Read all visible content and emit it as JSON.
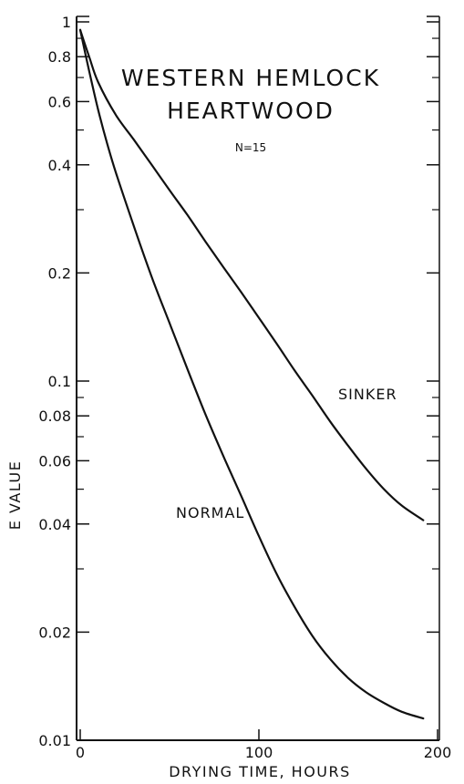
{
  "chart_data": {
    "type": "line",
    "title_lines": [
      "WESTERN HEMLOCK",
      "HEARTWOOD"
    ],
    "subtitle": "N=15",
    "xlabel": "DRYING TIME, HOURS",
    "ylabel": "E VALUE",
    "xlim": [
      0,
      200
    ],
    "ylim": [
      0.01,
      1
    ],
    "y_scale": "log",
    "grid": false,
    "x_ticks": [
      {
        "value": 0,
        "label": "0"
      },
      {
        "value": 100,
        "label": "100"
      },
      {
        "value": 200,
        "label": "200"
      }
    ],
    "y_ticks": [
      {
        "value": 1,
        "label": "1"
      },
      {
        "value": 0.8,
        "label": "0.8"
      },
      {
        "value": 0.6,
        "label": "0.6"
      },
      {
        "value": 0.4,
        "label": "0.4"
      },
      {
        "value": 0.2,
        "label": "0.2"
      },
      {
        "value": 0.1,
        "label": "0.1"
      },
      {
        "value": 0.08,
        "label": "0.08"
      },
      {
        "value": 0.06,
        "label": "0.06"
      },
      {
        "value": 0.04,
        "label": "0.04"
      },
      {
        "value": 0.02,
        "label": "0.02"
      },
      {
        "value": 0.01,
        "label": "0.01"
      }
    ],
    "y_minor_ticks": [
      0.9,
      0.7,
      0.5,
      0.3,
      0.09,
      0.07,
      0.05,
      0.03
    ],
    "series": [
      {
        "name": "SINKER",
        "x": [
          0,
          5,
          10,
          20,
          30,
          40,
          50,
          60,
          70,
          80,
          90,
          100,
          110,
          120,
          130,
          140,
          150,
          160,
          170,
          180,
          192
        ],
        "y": [
          0.95,
          0.8,
          0.68,
          0.55,
          0.47,
          0.4,
          0.34,
          0.29,
          0.245,
          0.208,
          0.177,
          0.15,
          0.127,
          0.107,
          0.091,
          0.077,
          0.066,
          0.057,
          0.05,
          0.045,
          0.041
        ]
      },
      {
        "name": "NORMAL",
        "x": [
          0,
          5,
          10,
          15,
          20,
          30,
          40,
          50,
          60,
          70,
          80,
          90,
          100,
          110,
          120,
          130,
          140,
          150,
          160,
          170,
          180,
          192
        ],
        "y": [
          0.95,
          0.73,
          0.57,
          0.46,
          0.38,
          0.27,
          0.195,
          0.145,
          0.108,
          0.081,
          0.062,
          0.048,
          0.037,
          0.029,
          0.0235,
          0.0195,
          0.0168,
          0.0149,
          0.0136,
          0.0127,
          0.012,
          0.0115
        ]
      }
    ]
  }
}
